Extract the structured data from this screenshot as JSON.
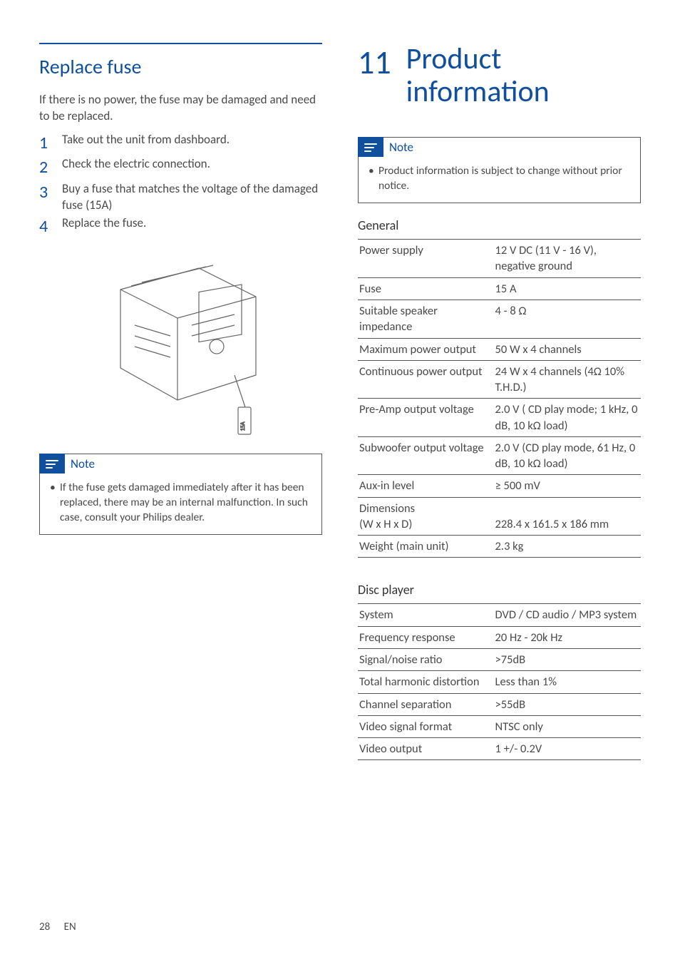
{
  "left": {
    "section_title": "Replace fuse",
    "intro": "If there is no power, the fuse may be damaged and need to be replaced.",
    "steps": [
      "Take out the unit from dashboard.",
      "Check the electric connection.",
      "Buy a fuse that matches the voltage of the damaged fuse (15A)",
      "Replace the fuse."
    ],
    "note_label": "Note",
    "note_text": "If the fuse gets damaged immediately after it has been replaced, there may be an internal malfunction. In such case, consult your Philips dealer."
  },
  "right": {
    "chapter_num": "11",
    "chapter_title_line1": "Product",
    "chapter_title_line2": "information",
    "note_label": "Note",
    "note_text": "Product information is subject to change without prior notice.",
    "general_head": "General",
    "general_rows": [
      {
        "k": "Power supply",
        "v": "12 V DC (11 V - 16 V), negative ground"
      },
      {
        "k": "Fuse",
        "v": "15 A"
      },
      {
        "k": "Suitable speaker impedance",
        "v": "4 - 8 Ω"
      },
      {
        "k": "Maximum power output",
        "v": "50 W x 4 channels"
      },
      {
        "k": "Continuous power output",
        "v": "24 W x 4 channels (4Ω 10% T.H.D.)"
      },
      {
        "k": "Pre-Amp output voltage",
        "v": "2.0 V ( CD play mode; 1 kHz, 0 dB, 10 kΩ load)"
      },
      {
        "k": "Subwoofer output voltage",
        "v": "2.0 V (CD play mode, 61 Hz, 0 dB, 10 kΩ load)"
      },
      {
        "k": "Aux-in level",
        "v": "≥ 500 mV"
      },
      {
        "k": "Dimensions\n(W x H x D)",
        "v": "\n228.4 x 161.5 x 186 mm"
      },
      {
        "k": "Weight (main unit)",
        "v": "2.3 kg"
      }
    ],
    "disc_head": "Disc player",
    "disc_rows": [
      {
        "k": "System",
        "v": "DVD / CD audio / MP3 system"
      },
      {
        "k": "Frequency response",
        "v": "20 Hz - 20k Hz"
      },
      {
        "k": "Signal/noise ratio",
        "v": ">75dB"
      },
      {
        "k": "Total harmonic distortion",
        "v": "Less than 1%"
      },
      {
        "k": "Channel separation",
        "v": ">55dB"
      },
      {
        "k": "Video signal format",
        "v": "NTSC only"
      },
      {
        "k": "Video output",
        "v": "1 +/- 0.2V"
      }
    ]
  },
  "footer": {
    "page": "28",
    "lang": "EN"
  },
  "colors": {
    "brand": "#0f4f9e",
    "text": "#4a4a4a",
    "rule": "#555555"
  }
}
